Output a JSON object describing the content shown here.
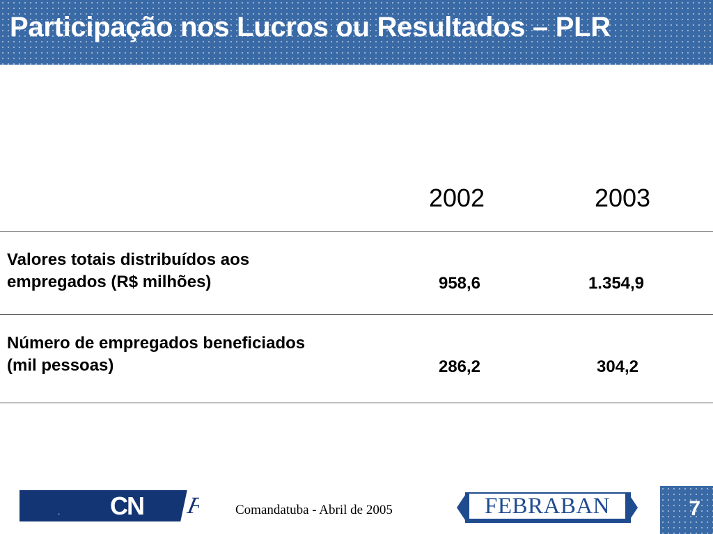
{
  "slide": {
    "title": "Participação nos Lucros ou Resultados – PLR",
    "page_number": "7"
  },
  "table": {
    "columns": [
      "2002",
      "2003"
    ],
    "rows": [
      {
        "label_line1": "Valores totais distribuídos aos",
        "label_line2": "empregados (R$ milhões)",
        "values": [
          "958,6",
          "1.354,9"
        ]
      },
      {
        "label_line1": "Número de empregados beneficiados",
        "label_line2": "(mil pessoas)",
        "values": [
          "286,2",
          "304,2"
        ]
      }
    ]
  },
  "footer": {
    "cnf_dot": ".",
    "cnf_logo_text": "CN",
    "cnf_logo_f": "F",
    "event_text": "Comandatuba - Abril de 2005",
    "febraban_logo": "FEBRABAN"
  },
  "colors": {
    "header_blue": "#3a6aa6",
    "cnf_navy": "#143574",
    "febraban_blue": "#1f4b8f"
  }
}
